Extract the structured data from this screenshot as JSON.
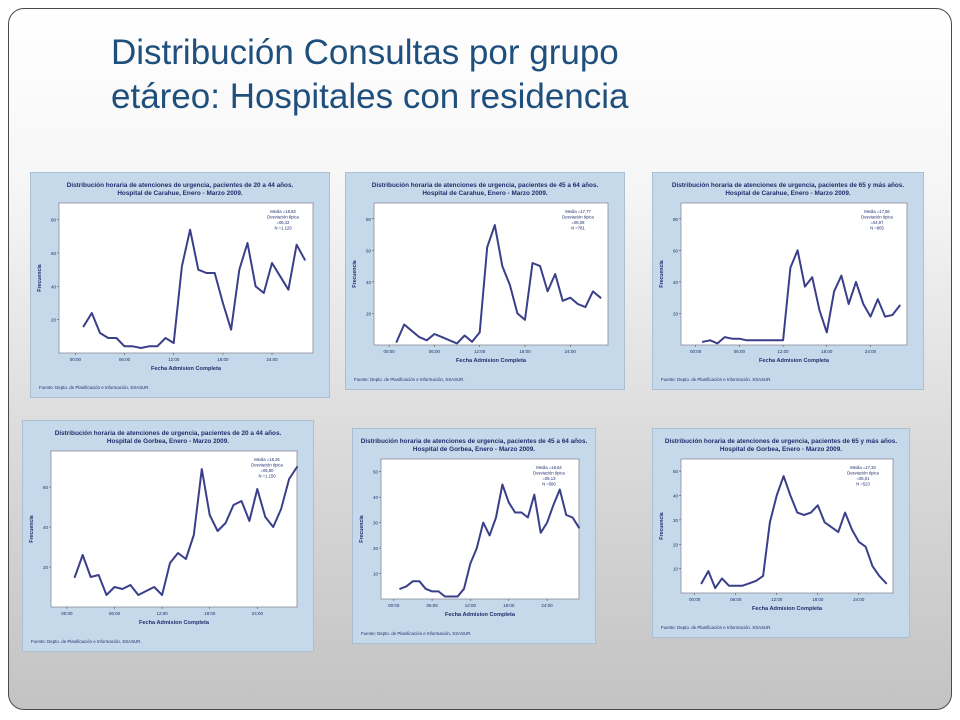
{
  "slide": {
    "title_line1": "Distribución Consultas por grupo",
    "title_line2": "etáreo: Hospitales con residencia"
  },
  "colors": {
    "title": "#1f4f7c",
    "panel_bg": "#c6d9ea",
    "plot_bg": "#ffffff",
    "series_line": "#3a3f8a",
    "panel_text": "#1e2e6e"
  },
  "chart_data": [
    {
      "type": "line",
      "title": "Distribución horaria de atenciones de urgencia, pacientes de 20 a 44 años.",
      "subtitle": "Hospital de Carahue, Enero - Marzo 2009.",
      "xlabel": "Fecha Admision Completa",
      "ylabel": "Frecuencia",
      "xticks": [
        "00:00",
        "06:00",
        "12:00",
        "18:00",
        "24:00"
      ],
      "yticks": [
        "20",
        "40",
        "60",
        "80"
      ],
      "xlim": [
        -2,
        29
      ],
      "ylim": [
        0,
        90
      ],
      "stats": [
        "Media =18,83",
        "Desviación típica",
        "=06,42",
        "N =1.129"
      ],
      "source": "Fuente: Depto. de Planificación e Información, SSASUR.",
      "x": [
        1,
        2,
        3,
        4,
        5,
        6,
        7,
        8,
        9,
        10,
        11,
        12,
        13,
        14,
        15,
        16,
        17,
        18,
        19,
        20,
        21,
        22,
        23,
        24,
        25,
        26,
        27,
        28
      ],
      "values": [
        16,
        24,
        12,
        9,
        9,
        4,
        4,
        3,
        4,
        4,
        9,
        6,
        52,
        74,
        50,
        48,
        48,
        30,
        14,
        50,
        66,
        40,
        36,
        54,
        46,
        38,
        65,
        56
      ]
    },
    {
      "type": "line",
      "title": "Distribución horaria de atenciones de urgencia, pacientes de 45 a 64 años.",
      "subtitle": "Hospital de Carahue, Enero - Marzo 2009.",
      "xlabel": "Fecha Admision Completa",
      "ylabel": "Frecuencia",
      "xticks": [
        "00:00",
        "06:00",
        "12:00",
        "18:00",
        "24:00"
      ],
      "yticks": [
        "20",
        "40",
        "60",
        "80"
      ],
      "xlim": [
        -2,
        29
      ],
      "ylim": [
        0,
        90
      ],
      "stats": [
        "Media =17,77",
        "Desviación típica",
        "=05,08",
        "N =781"
      ],
      "source": "Fuente: Depto. de Planificación e Información, SSASUR.",
      "x": [
        1,
        2,
        3,
        4,
        5,
        6,
        7,
        8,
        9,
        10,
        11,
        12,
        13,
        14,
        15,
        16,
        17,
        18,
        19,
        20,
        21,
        22,
        23,
        24,
        25,
        26,
        27,
        28
      ],
      "values": [
        2,
        13,
        9,
        5,
        3,
        7,
        5,
        3,
        1,
        6,
        2,
        8,
        62,
        76,
        50,
        38,
        20,
        16,
        52,
        50,
        34,
        45,
        28,
        30,
        26,
        24,
        34,
        30
      ]
    },
    {
      "type": "line",
      "title": "Distribución horaria de atenciones de urgencia, pacientes de 65 y más años.",
      "subtitle": "Hospital de Carahue, Enero - Marzo 2009.",
      "xlabel": "Fecha Admision Completa",
      "ylabel": "Frecuencia",
      "xticks": [
        "00:00",
        "06:00",
        "12:00",
        "18:00",
        "24:00"
      ],
      "yticks": [
        "20",
        "40",
        "60",
        "80"
      ],
      "xlim": [
        -2,
        29
      ],
      "ylim": [
        0,
        90
      ],
      "stats": [
        "Media =17,56",
        "Desviación típica",
        "=04,97",
        "N =805"
      ],
      "source": "Fuente: Depto. de Planificación e Información, SSASUR.",
      "x": [
        1,
        2,
        3,
        4,
        5,
        6,
        7,
        8,
        9,
        10,
        11,
        12,
        13,
        14,
        15,
        16,
        17,
        18,
        19,
        20,
        21,
        22,
        23,
        24,
        25,
        26,
        27,
        28
      ],
      "values": [
        2,
        3,
        1,
        5,
        4,
        4,
        3,
        3,
        3,
        3,
        3,
        3,
        49,
        60,
        37,
        43,
        22,
        8,
        34,
        44,
        26,
        40,
        26,
        18,
        29,
        18,
        19,
        25
      ]
    },
    {
      "type": "line",
      "title": "Distribución horaria de atenciones de urgencia, pacientes de 20 a 44 años.",
      "subtitle": "Hospital de Gorbea, Enero - Marzo 2009.",
      "xlabel": "Fecha Admision Completa",
      "ylabel": "Frecuencia",
      "xticks": [
        "00:00",
        "06:00",
        "12:00",
        "18:00",
        "24:00"
      ],
      "yticks": [
        "20",
        "40",
        "60"
      ],
      "xlim": [
        -2,
        29
      ],
      "ylim": [
        0,
        78
      ],
      "stats": [
        "Media =18,26",
        "Desviación típica",
        "=05,50",
        "N =1.150"
      ],
      "source": "Fuente: Depto. de Planificación e Información, SSASUR.",
      "x": [
        1,
        2,
        3,
        4,
        5,
        6,
        7,
        8,
        9,
        10,
        11,
        12,
        13,
        14,
        15,
        16,
        17,
        18,
        19,
        20,
        21,
        22,
        23,
        24,
        25,
        26,
        27,
        28,
        29
      ],
      "values": [
        15,
        26,
        15,
        16,
        6,
        10,
        9,
        11,
        6,
        8,
        10,
        6,
        22,
        27,
        24,
        36,
        69,
        46,
        38,
        42,
        51,
        53,
        43,
        59,
        45,
        40,
        49,
        64,
        70
      ]
    },
    {
      "type": "line",
      "title": "Distribución horaria de atenciones de urgencia, pacientes de 45 a 64 años.",
      "subtitle": "Hospital de Gorbea, Enero - Marzo 2009.",
      "xlabel": "Fecha Admision Completa",
      "ylabel": "Frecuencia",
      "xticks": [
        "00:00",
        "06:00",
        "12:00",
        "18:00",
        "24:00"
      ],
      "yticks": [
        "10",
        "20",
        "30",
        "40",
        "50"
      ],
      "xlim": [
        -2,
        29
      ],
      "ylim": [
        0,
        55
      ],
      "stats": [
        "Media =18,64",
        "Desviación típica",
        "=05,13",
        "N =580"
      ],
      "source": "Fuente: Depto. de Planificación e Información, SSASUR.",
      "x": [
        1,
        2,
        3,
        4,
        5,
        6,
        7,
        8,
        9,
        10,
        11,
        12,
        13,
        14,
        15,
        16,
        17,
        18,
        19,
        20,
        21,
        22,
        23,
        24,
        25,
        26,
        27,
        28,
        29
      ],
      "values": [
        4,
        5,
        7,
        7,
        4,
        3,
        3,
        1,
        1,
        1,
        4,
        14,
        20,
        30,
        25,
        32,
        45,
        38,
        34,
        34,
        32,
        41,
        26,
        30,
        37,
        43,
        33,
        32,
        28
      ]
    },
    {
      "type": "line",
      "title": "Distribución horaria de atenciones de urgencia, pacientes de 65 y más años.",
      "subtitle": "Hospital de Gorbea, Enero - Marzo 2009.",
      "xlabel": "Fecha Admision Completa",
      "ylabel": "Frecuencia",
      "xticks": [
        "00:00",
        "06:00",
        "12:00",
        "18:00",
        "24:00"
      ],
      "yticks": [
        "10",
        "20",
        "30",
        "40",
        "50"
      ],
      "xlim": [
        -2,
        29
      ],
      "ylim": [
        0,
        55
      ],
      "stats": [
        "Media =17,33",
        "Desviación típica",
        "=05,01",
        "N =523"
      ],
      "source": "Fuente: Depto. de Planificación e Información, SSASUR.",
      "x": [
        1,
        2,
        3,
        4,
        5,
        6,
        7,
        8,
        9,
        10,
        11,
        12,
        13,
        14,
        15,
        16,
        17,
        18,
        19,
        20,
        21,
        22,
        23,
        24,
        25,
        26,
        27,
        28
      ],
      "values": [
        4,
        9,
        2,
        6,
        3,
        3,
        3,
        4,
        5,
        7,
        29,
        40,
        48,
        40,
        33,
        32,
        33,
        36,
        29,
        27,
        25,
        33,
        26,
        21,
        19,
        11,
        7,
        4
      ]
    }
  ]
}
